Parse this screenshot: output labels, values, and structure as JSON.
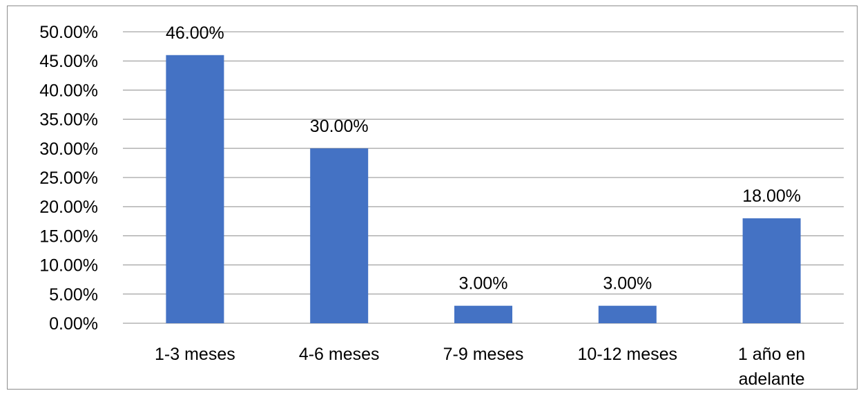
{
  "chart_data": {
    "type": "bar",
    "title": "",
    "xlabel": "",
    "ylabel": "",
    "categories": [
      "1-3 meses",
      "4-6 meses",
      "7-9 meses",
      "10-12 meses",
      "1 año en adelante"
    ],
    "category_lines": [
      [
        "1-3 meses"
      ],
      [
        "4-6 meses"
      ],
      [
        "7-9 meses"
      ],
      [
        "10-12 meses"
      ],
      [
        "1 año en",
        "adelante"
      ]
    ],
    "values": [
      46,
      30,
      3,
      3,
      18
    ],
    "data_labels": [
      "46.00%",
      "30.00%",
      "3.00%",
      "3.00%",
      "18.00%"
    ],
    "ylim": [
      0,
      50
    ],
    "yticks": [
      0,
      5,
      10,
      15,
      20,
      25,
      30,
      35,
      40,
      45,
      50
    ],
    "ytick_labels": [
      "0.00%",
      "5.00%",
      "10.00%",
      "15.00%",
      "20.00%",
      "25.00%",
      "30.00%",
      "35.00%",
      "40.00%",
      "45.00%",
      "50.00%"
    ],
    "grid": true,
    "legend": "none",
    "bar_color": "#4472C4",
    "grid_color": "#8c8c8c"
  }
}
